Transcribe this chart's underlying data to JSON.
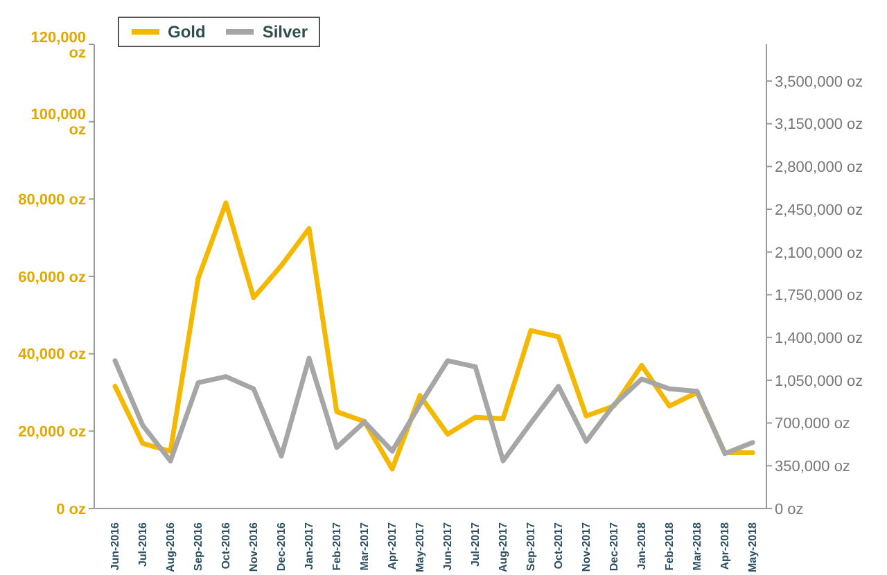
{
  "chart_data": {
    "type": "line",
    "categories": [
      "Jun-2016",
      "Jul-2016",
      "Aug-2016",
      "Sep-2016",
      "Oct-2016",
      "Nov-2016",
      "Dec-2016",
      "Jan-2017",
      "Feb-2017",
      "Mar-2017",
      "Apr-2017",
      "May-2017",
      "Jun-2017",
      "Jul-2017",
      "Aug-2017",
      "Sep-2017",
      "Oct-2017",
      "Nov-2017",
      "Dec-2017",
      "Jan-2018",
      "Feb-2018",
      "Mar-2018",
      "Apr-2018",
      "May-2018"
    ],
    "series": [
      {
        "name": "Gold",
        "color": "#f5b800",
        "values": [
          31600,
          16800,
          14800,
          59500,
          79000,
          54500,
          62800,
          72400,
          25000,
          22500,
          10200,
          29200,
          19200,
          23600,
          23200,
          46000,
          44400,
          23900,
          26500,
          37000,
          26500,
          30000,
          14400,
          14400
        ]
      },
      {
        "name": "Silver",
        "color": "#a6a6a6",
        "axis": "y2",
        "values": [
          1210000,
          680000,
          390000,
          1030000,
          1080000,
          980000,
          430000,
          1230000,
          500000,
          710000,
          470000,
          850000,
          1210000,
          1160000,
          390000,
          700000,
          1000000,
          550000,
          850000,
          1060000,
          980000,
          960000,
          450000,
          540000
        ]
      }
    ],
    "ylim": [
      0,
      120000
    ],
    "yticks": [
      {
        "value": 0,
        "label": "0 oz"
      },
      {
        "value": 20000,
        "label": "20,000 oz"
      },
      {
        "value": 40000,
        "label": "40,000 oz"
      },
      {
        "value": 60000,
        "label": "60,000 oz"
      },
      {
        "value": 80000,
        "label": "80,000 oz"
      },
      {
        "value": 100000,
        "label": "100,000 oz"
      },
      {
        "value": 120000,
        "label": "120,000 oz"
      }
    ],
    "y2lim": [
      0,
      3800000
    ],
    "y2ticks": [
      {
        "value": 0,
        "label": "0 oz"
      },
      {
        "value": 350000,
        "label": "350,000 oz"
      },
      {
        "value": 700000,
        "label": "700,000 oz"
      },
      {
        "value": 1050000,
        "label": "1,050,000 oz"
      },
      {
        "value": 1400000,
        "label": "1,400,000 oz"
      },
      {
        "value": 1750000,
        "label": "1,750,000 oz"
      },
      {
        "value": 2100000,
        "label": "2,100,000 oz"
      },
      {
        "value": 2450000,
        "label": "2,450,000 oz"
      },
      {
        "value": 2800000,
        "label": "2,800,000 oz"
      },
      {
        "value": 3150000,
        "label": "3,150,000 oz"
      },
      {
        "value": 3500000,
        "label": "3,500,000 oz"
      }
    ],
    "grid": false,
    "legend": "top left",
    "marker": "none",
    "line_style": "solid"
  }
}
